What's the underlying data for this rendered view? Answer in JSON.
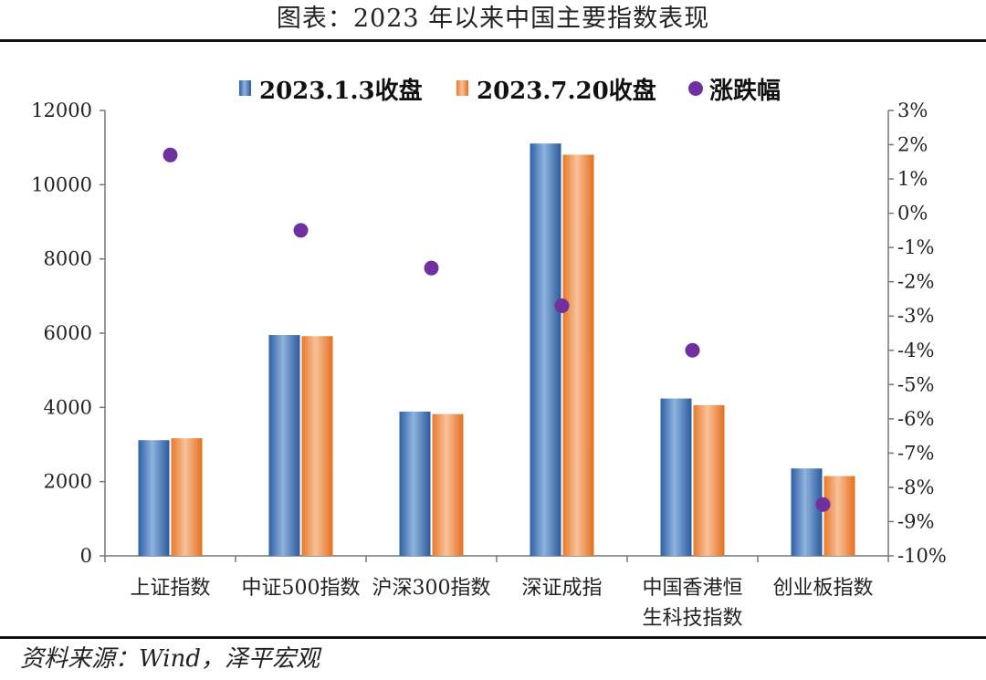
{
  "title": "图表：2023 年以来中国主要指数表现",
  "source": "资料来源：Wind，泽平宏观",
  "colors": {
    "series1": "#4a7fc0",
    "series2": "#f08a3c",
    "series3": "#7030a0"
  },
  "chart_data": {
    "type": "bar",
    "categories": [
      [
        "上证指数"
      ],
      [
        "中证500指数"
      ],
      [
        "沪深300指数"
      ],
      [
        "深证成指"
      ],
      [
        "中国香港恒",
        "生科技指数"
      ],
      [
        "创业板指数"
      ]
    ],
    "series": [
      {
        "name": "2023.1.3收盘",
        "type": "bar",
        "axis": "left",
        "values": [
          3117,
          5950,
          3887,
          11109,
          4240,
          2355
        ]
      },
      {
        "name": "2023.7.20收盘",
        "type": "bar",
        "axis": "left",
        "values": [
          3169,
          5920,
          3820,
          10807,
          4060,
          2150
        ]
      },
      {
        "name": "涨跌幅",
        "type": "scatter",
        "axis": "right",
        "values": [
          1.7,
          -0.5,
          -1.6,
          -2.7,
          -4.0,
          -8.5
        ]
      }
    ],
    "ylim": [
      0,
      12000
    ],
    "yticks": [
      "0",
      "2000",
      "4000",
      "6000",
      "8000",
      "10000",
      "12000"
    ],
    "y2lim": [
      -10,
      3
    ],
    "y2ticks": [
      "-10%",
      "-9%",
      "-8%",
      "-7%",
      "-6%",
      "-5%",
      "-4%",
      "-3%",
      "-2%",
      "-1%",
      "0%",
      "1%",
      "2%",
      "3%"
    ],
    "legend": "top-center",
    "grid": false
  }
}
